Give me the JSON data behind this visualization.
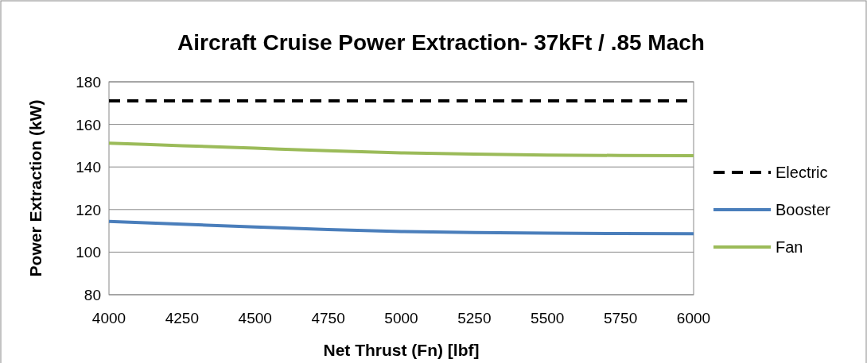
{
  "chart_data": {
    "type": "line",
    "title": "Aircraft Cruise Power Extraction- 37kFt / .85 Mach",
    "xlabel": "Net Thrust (Fn) [lbf]",
    "ylabel": "Power Extraction (kW)",
    "x": [
      4000,
      4250,
      4500,
      4750,
      5000,
      5250,
      5500,
      5750,
      6000
    ],
    "series": [
      {
        "name": "Electric",
        "color": "#000000",
        "line_style": "dashed",
        "values": [
          171,
          171,
          171,
          171,
          171,
          171,
          171,
          171,
          171
        ]
      },
      {
        "name": "Booster",
        "color": "#4a7ebb",
        "line_style": "solid",
        "values": [
          114.4,
          113.1,
          111.8,
          110.6,
          109.7,
          109.2,
          108.9,
          108.7,
          108.6
        ]
      },
      {
        "name": "Fan",
        "color": "#9bbb59",
        "line_style": "solid",
        "values": [
          151.2,
          150.0,
          148.8,
          147.6,
          146.6,
          146.0,
          145.6,
          145.4,
          145.3
        ]
      }
    ],
    "xlim": [
      4000,
      6000
    ],
    "xticks": [
      4000,
      4250,
      4500,
      4750,
      5000,
      5250,
      5500,
      5750,
      6000
    ],
    "ylim": [
      80,
      180
    ],
    "yticks": [
      80,
      100,
      120,
      140,
      160,
      180
    ],
    "grid": "y",
    "legend": "right"
  }
}
